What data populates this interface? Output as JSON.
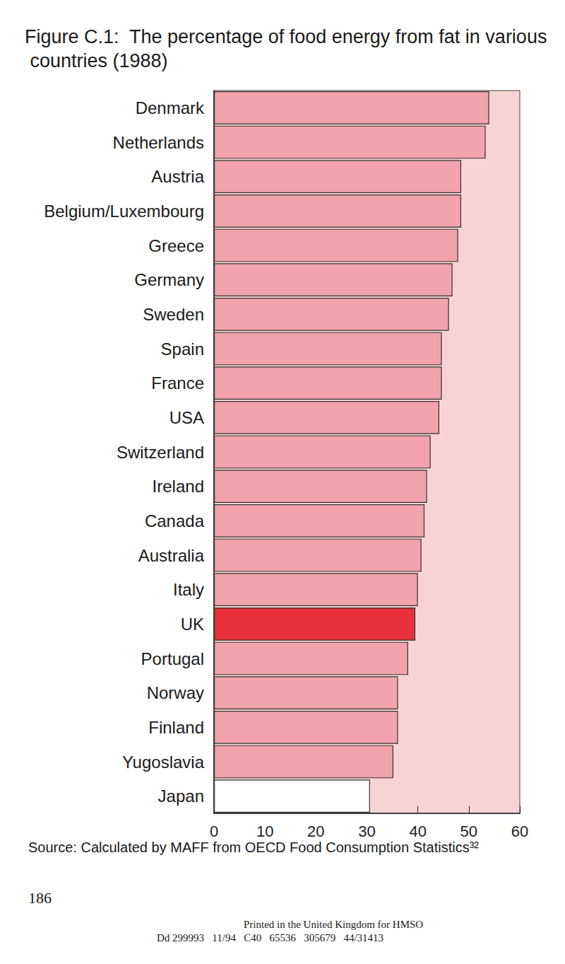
{
  "chart_data": {
    "type": "bar",
    "title": "Figure C.1:  The percentage of food energy from fat in various countries (1988)",
    "orientation": "horizontal",
    "categories": [
      "Denmark",
      "Netherlands",
      "Austria",
      "Belgium/Luxembourg",
      "Greece",
      "Germany",
      "Sweden",
      "Spain",
      "France",
      "USA",
      "Switzerland",
      "Ireland",
      "Canada",
      "Australia",
      "Italy",
      "UK",
      "Portugal",
      "Norway",
      "Finland",
      "Yugoslavia",
      "Japan"
    ],
    "values": [
      54.0,
      53.3,
      48.5,
      48.5,
      47.9,
      46.8,
      46.1,
      44.7,
      44.7,
      44.2,
      42.5,
      41.8,
      41.3,
      40.7,
      40.0,
      39.5,
      38.1,
      36.1,
      36.1,
      35.2,
      30.6
    ],
    "colors": [
      "#f2a3ab",
      "#f2a3ab",
      "#f2a3ab",
      "#f2a3ab",
      "#f2a3ab",
      "#f2a3ab",
      "#f2a3ab",
      "#f2a3ab",
      "#f2a3ab",
      "#f2a3ab",
      "#f2a3ab",
      "#f2a3ab",
      "#f2a3ab",
      "#f2a3ab",
      "#f2a3ab",
      "#e8303a",
      "#f2a3ab",
      "#f2a3ab",
      "#f2a3ab",
      "#f2a3ab",
      "#ffffff"
    ],
    "xlim": [
      0,
      60
    ],
    "xticks": [
      0,
      10,
      20,
      30,
      40,
      50,
      60
    ],
    "grid": false,
    "annotations": [
      "Source: Calculated by MAFF from OECD Food Consumption Statistics³²",
      "186",
      "Printed in the United Kingdom for HMSO",
      "Dd 299993   11/94   C40   65536   305679   44/31413"
    ]
  }
}
